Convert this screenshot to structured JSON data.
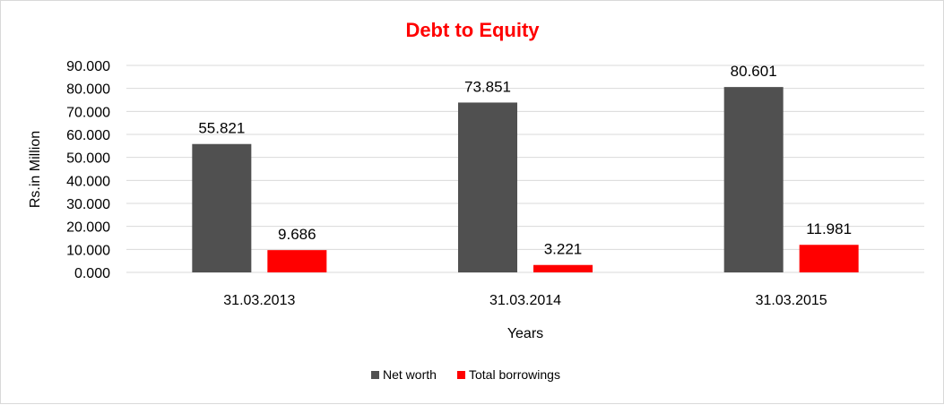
{
  "chart_data": {
    "type": "bar",
    "title": "Debt to Equity",
    "xlabel": "Years",
    "ylabel": "Rs.in Million",
    "categories": [
      "31.03.2013",
      "31.03.2014",
      "31.03.2015"
    ],
    "series": [
      {
        "name": "Net worth",
        "values": [
          55.821,
          73.851,
          80.601
        ],
        "labels": [
          "55.821",
          "73.851",
          "80.601"
        ],
        "color": "#505050"
      },
      {
        "name": "Total borrowings",
        "values": [
          9.686,
          3.221,
          11.981
        ],
        "labels": [
          "9.686",
          "3.221",
          "11.981"
        ],
        "color": "#ff0000"
      }
    ],
    "ylim": [
      0,
      90
    ],
    "yticks": [
      0,
      10,
      20,
      30,
      40,
      50,
      60,
      70,
      80,
      90
    ],
    "ytick_labels": [
      "0.000",
      "10.000",
      "20.000",
      "30.000",
      "40.000",
      "50.000",
      "60.000",
      "70.000",
      "80.000",
      "90.000"
    ],
    "grid": true,
    "legend_position": "bottom",
    "title_color": "#ff0000",
    "grid_color": "#d9d9d9"
  }
}
